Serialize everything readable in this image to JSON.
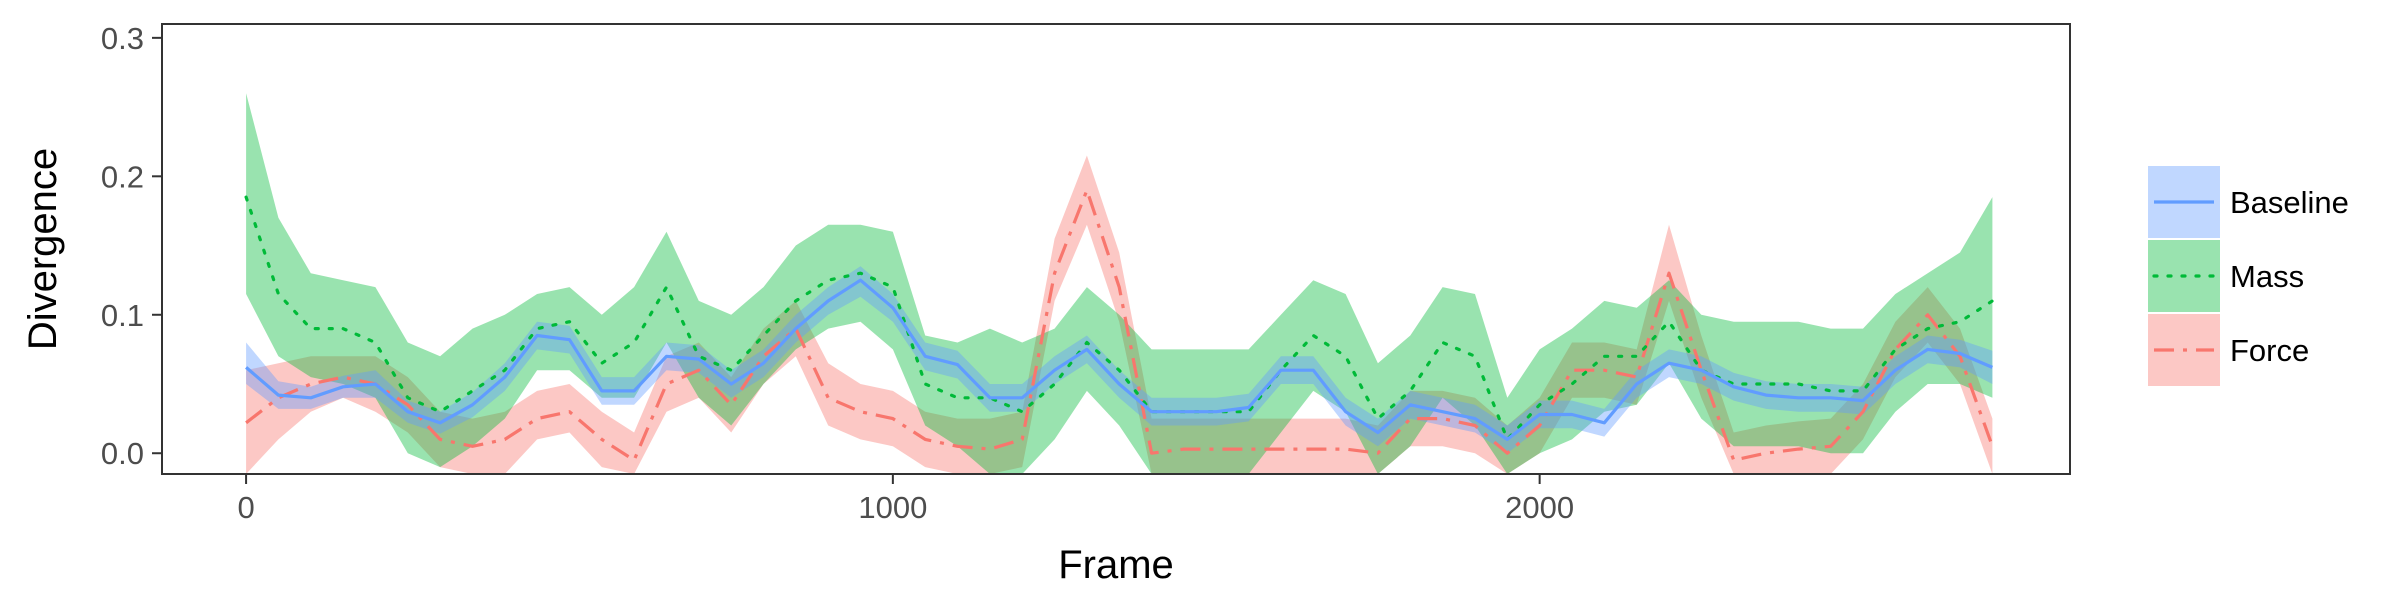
{
  "chart_data": {
    "type": "line",
    "title": "",
    "xlabel": "Frame",
    "ylabel": "Divergence",
    "xlim": [
      -130,
      2820
    ],
    "ylim": [
      -0.015,
      0.31
    ],
    "x_ticks": [
      0,
      1000,
      2000
    ],
    "x_tick_labels": [
      "0",
      "1000",
      "2000"
    ],
    "y_ticks": [
      0.0,
      0.1,
      0.2,
      0.3
    ],
    "y_tick_labels": [
      "0.0",
      "0.1",
      "0.2",
      "0.3"
    ],
    "grid": false,
    "legend_position": "right",
    "x": [
      0,
      50,
      100,
      150,
      200,
      250,
      300,
      350,
      400,
      450,
      500,
      550,
      600,
      650,
      700,
      750,
      800,
      850,
      900,
      950,
      1000,
      1050,
      1100,
      1150,
      1200,
      1250,
      1300,
      1350,
      1400,
      1450,
      1500,
      1550,
      1600,
      1650,
      1700,
      1750,
      1800,
      1850,
      1900,
      1950,
      2000,
      2050,
      2100,
      2150,
      2200,
      2250,
      2300,
      2350,
      2400,
      2450,
      2500,
      2550,
      2600,
      2650,
      2700
    ],
    "series": [
      {
        "name": "Baseline",
        "color": "#619CFF",
        "dash": "solid",
        "values": [
          0.062,
          0.042,
          0.04,
          0.048,
          0.05,
          0.03,
          0.022,
          0.035,
          0.055,
          0.085,
          0.082,
          0.045,
          0.045,
          0.07,
          0.068,
          0.05,
          0.065,
          0.09,
          0.11,
          0.125,
          0.105,
          0.07,
          0.064,
          0.04,
          0.04,
          0.06,
          0.075,
          0.05,
          0.03,
          0.03,
          0.03,
          0.033,
          0.06,
          0.06,
          0.03,
          0.015,
          0.035,
          0.03,
          0.025,
          0.01,
          0.028,
          0.028,
          0.022,
          0.05,
          0.065,
          0.06,
          0.048,
          0.042,
          0.04,
          0.04,
          0.038,
          0.06,
          0.075,
          0.072,
          0.062
        ],
        "lower": [
          0.05,
          0.032,
          0.032,
          0.04,
          0.04,
          0.022,
          0.014,
          0.026,
          0.045,
          0.075,
          0.072,
          0.035,
          0.035,
          0.06,
          0.058,
          0.04,
          0.055,
          0.08,
          0.1,
          0.113,
          0.095,
          0.06,
          0.054,
          0.03,
          0.03,
          0.05,
          0.065,
          0.04,
          0.02,
          0.02,
          0.02,
          0.023,
          0.05,
          0.05,
          0.02,
          0.005,
          0.025,
          0.02,
          0.015,
          0.0,
          0.018,
          0.018,
          0.012,
          0.04,
          0.055,
          0.05,
          0.038,
          0.032,
          0.03,
          0.03,
          0.028,
          0.05,
          0.065,
          0.062,
          0.05
        ],
        "upper": [
          0.08,
          0.052,
          0.048,
          0.056,
          0.06,
          0.038,
          0.03,
          0.044,
          0.065,
          0.095,
          0.092,
          0.055,
          0.055,
          0.08,
          0.078,
          0.06,
          0.075,
          0.1,
          0.12,
          0.135,
          0.115,
          0.08,
          0.074,
          0.05,
          0.05,
          0.07,
          0.085,
          0.06,
          0.04,
          0.04,
          0.04,
          0.043,
          0.07,
          0.07,
          0.04,
          0.025,
          0.045,
          0.04,
          0.035,
          0.02,
          0.038,
          0.038,
          0.032,
          0.06,
          0.075,
          0.07,
          0.058,
          0.052,
          0.05,
          0.05,
          0.048,
          0.07,
          0.085,
          0.082,
          0.074
        ]
      },
      {
        "name": "Mass",
        "color": "#00BA38",
        "dash": "dotted",
        "values": [
          0.185,
          0.115,
          0.09,
          0.09,
          0.08,
          0.04,
          0.03,
          0.045,
          0.06,
          0.09,
          0.095,
          0.065,
          0.08,
          0.12,
          0.07,
          0.06,
          0.085,
          0.11,
          0.125,
          0.13,
          0.12,
          0.05,
          0.04,
          0.04,
          0.03,
          0.05,
          0.08,
          0.06,
          0.03,
          0.03,
          0.03,
          0.03,
          0.06,
          0.085,
          0.07,
          0.025,
          0.045,
          0.08,
          0.07,
          0.01,
          0.035,
          0.05,
          0.07,
          0.07,
          0.095,
          0.06,
          0.05,
          0.05,
          0.05,
          0.045,
          0.045,
          0.075,
          0.09,
          0.095,
          0.11
        ],
        "lower": [
          0.115,
          0.07,
          0.055,
          0.05,
          0.04,
          0.0,
          -0.01,
          0.005,
          0.025,
          0.06,
          0.06,
          0.04,
          0.04,
          0.08,
          0.04,
          0.02,
          0.05,
          0.075,
          0.09,
          0.095,
          0.075,
          0.02,
          0.005,
          -0.015,
          -0.015,
          0.01,
          0.045,
          0.02,
          -0.015,
          -0.015,
          -0.015,
          -0.015,
          0.015,
          0.045,
          0.03,
          -0.015,
          0.005,
          0.04,
          0.02,
          -0.015,
          0.0,
          0.01,
          0.03,
          0.035,
          0.065,
          0.025,
          0.005,
          0.005,
          0.005,
          0.0,
          0.0,
          0.03,
          0.05,
          0.05,
          0.04
        ],
        "upper": [
          0.26,
          0.17,
          0.13,
          0.125,
          0.12,
          0.08,
          0.07,
          0.09,
          0.1,
          0.115,
          0.12,
          0.1,
          0.12,
          0.16,
          0.11,
          0.1,
          0.12,
          0.15,
          0.165,
          0.165,
          0.16,
          0.085,
          0.08,
          0.09,
          0.08,
          0.09,
          0.12,
          0.1,
          0.075,
          0.075,
          0.075,
          0.075,
          0.1,
          0.125,
          0.115,
          0.065,
          0.085,
          0.12,
          0.115,
          0.04,
          0.075,
          0.09,
          0.11,
          0.105,
          0.125,
          0.1,
          0.095,
          0.095,
          0.095,
          0.09,
          0.09,
          0.115,
          0.13,
          0.145,
          0.185
        ]
      },
      {
        "name": "Force",
        "color": "#F8766D",
        "dash": "dashdot",
        "values": [
          0.022,
          0.04,
          0.05,
          0.055,
          0.05,
          0.035,
          0.01,
          0.005,
          0.01,
          0.025,
          0.03,
          0.01,
          -0.005,
          0.05,
          0.06,
          0.035,
          0.07,
          0.09,
          0.04,
          0.03,
          0.025,
          0.01,
          0.005,
          0.003,
          0.01,
          0.13,
          0.19,
          0.12,
          0.0,
          0.003,
          0.003,
          0.003,
          0.003,
          0.003,
          0.003,
          0.0,
          0.025,
          0.025,
          0.02,
          0.0,
          0.02,
          0.06,
          0.06,
          0.055,
          0.13,
          0.06,
          -0.005,
          0.0,
          0.003,
          0.005,
          0.03,
          0.075,
          0.1,
          0.07,
          0.005
        ],
        "lower": [
          -0.015,
          0.01,
          0.03,
          0.04,
          0.03,
          0.015,
          -0.01,
          -0.015,
          -0.015,
          0.01,
          0.015,
          -0.01,
          -0.015,
          0.03,
          0.04,
          0.015,
          0.05,
          0.07,
          0.02,
          0.01,
          0.005,
          -0.01,
          -0.015,
          -0.015,
          -0.01,
          0.11,
          0.165,
          0.095,
          -0.015,
          -0.015,
          -0.015,
          -0.015,
          -0.015,
          -0.015,
          -0.015,
          -0.015,
          0.005,
          0.005,
          0.0,
          -0.015,
          0.0,
          0.04,
          0.04,
          0.035,
          0.11,
          0.04,
          -0.015,
          -0.015,
          -0.015,
          -0.015,
          0.01,
          0.055,
          0.08,
          0.05,
          -0.015
        ],
        "upper": [
          0.06,
          0.065,
          0.07,
          0.07,
          0.07,
          0.055,
          0.03,
          0.025,
          0.03,
          0.045,
          0.05,
          0.03,
          0.015,
          0.07,
          0.08,
          0.055,
          0.09,
          0.11,
          0.065,
          0.05,
          0.045,
          0.03,
          0.025,
          0.025,
          0.03,
          0.155,
          0.215,
          0.145,
          0.025,
          0.025,
          0.025,
          0.025,
          0.025,
          0.025,
          0.025,
          0.02,
          0.045,
          0.045,
          0.04,
          0.02,
          0.04,
          0.08,
          0.08,
          0.075,
          0.165,
          0.085,
          0.015,
          0.02,
          0.023,
          0.025,
          0.05,
          0.095,
          0.12,
          0.09,
          0.025
        ]
      }
    ]
  }
}
